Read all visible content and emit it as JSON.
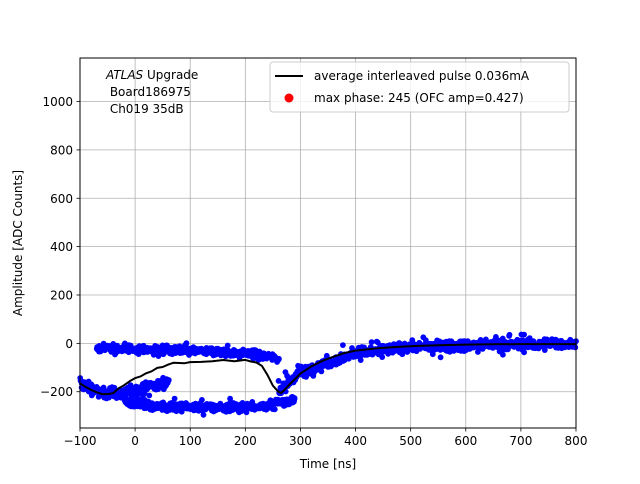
{
  "chart_data": {
    "type": "scatter",
    "xlabel": "Time [ns]",
    "ylabel": "Amplitude [ADC Counts]",
    "xlim": [
      -100,
      800
    ],
    "ylim": [
      -350,
      1180
    ],
    "xticks": [
      -100,
      0,
      100,
      200,
      300,
      400,
      500,
      600,
      700,
      800
    ],
    "yticks": [
      -200,
      0,
      200,
      400,
      600,
      800,
      1000
    ],
    "grid": true,
    "legend_position": "top-right",
    "annotation": {
      "italic": "ATLAS",
      "line1_rest": " Upgrade",
      "line2": " Board186975",
      "line3": " Ch019 35dB"
    },
    "colors": {
      "scatter": "#0000ff",
      "average": "#000000",
      "max_phase": "#ff0000"
    },
    "series": [
      {
        "name": "average interleaved pulse 0.036mA",
        "type": "line",
        "color": "#000000",
        "points": [
          [
            -100,
            -165
          ],
          [
            -90,
            -180
          ],
          [
            -80,
            -192
          ],
          [
            -70,
            -202
          ],
          [
            -60,
            -210
          ],
          [
            -50,
            -210
          ],
          [
            -40,
            -206
          ],
          [
            -30,
            -190
          ],
          [
            -20,
            -172
          ],
          [
            -10,
            -158
          ],
          [
            0,
            -145
          ],
          [
            10,
            -135
          ],
          [
            20,
            -124
          ],
          [
            30,
            -115
          ],
          [
            40,
            -105
          ],
          [
            50,
            -96
          ],
          [
            60,
            -89
          ],
          [
            70,
            -83
          ],
          [
            80,
            -80
          ],
          [
            90,
            -78
          ],
          [
            100,
            -75
          ],
          [
            120,
            -73
          ],
          [
            140,
            -72
          ],
          [
            160,
            -72
          ],
          [
            180,
            -73
          ],
          [
            200,
            -72
          ],
          [
            210,
            -74
          ],
          [
            220,
            -78
          ],
          [
            230,
            -90
          ],
          [
            240,
            -130
          ],
          [
            250,
            -175
          ],
          [
            260,
            -200
          ],
          [
            265,
            -205
          ],
          [
            270,
            -195
          ],
          [
            280,
            -170
          ],
          [
            290,
            -148
          ],
          [
            300,
            -125
          ],
          [
            320,
            -95
          ],
          [
            340,
            -72
          ],
          [
            360,
            -55
          ],
          [
            380,
            -40
          ],
          [
            400,
            -30
          ],
          [
            440,
            -20
          ],
          [
            480,
            -14
          ],
          [
            520,
            -10
          ],
          [
            560,
            -7
          ],
          [
            600,
            -5
          ],
          [
            650,
            -4
          ],
          [
            700,
            -3
          ],
          [
            750,
            -3
          ],
          [
            800,
            -3
          ]
        ]
      },
      {
        "name": "max phase: 245 (OFC amp=0.427)",
        "type": "marker",
        "color": "#ff0000",
        "points": []
      },
      {
        "name": "",
        "type": "scatter",
        "color": "#0000ff",
        "bands": [
          {
            "x": [
              -100,
              60
            ],
            "y_center": [
              -165,
              -205,
              -205,
              -200,
              -160
            ],
            "x_nodes": [
              -100,
              -60,
              -40,
              -10,
              60
            ],
            "spread": 22
          },
          {
            "x": [
              -70,
              260
            ],
            "y_center": [
              -18,
              -25,
              -30,
              -40,
              -60
            ],
            "x_nodes": [
              -70,
              0,
              100,
              200,
              260
            ],
            "spread": 18
          },
          {
            "x": [
              -20,
              290
            ],
            "y_center": [
              -240,
              -260,
              -265,
              -260,
              -230
            ],
            "x_nodes": [
              -20,
              40,
              150,
              230,
              290
            ],
            "spread": 18
          },
          {
            "x": [
              260,
              800
            ],
            "y_center": [
              -200,
              -120,
              -40,
              -15,
              -5,
              -2
            ],
            "x_nodes": [
              260,
              300,
              400,
              500,
              650,
              800
            ],
            "spread": 22
          }
        ]
      }
    ]
  }
}
